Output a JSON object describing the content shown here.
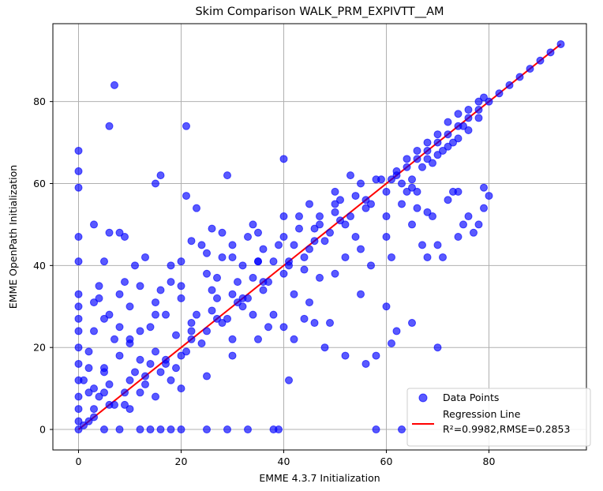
{
  "chart_data": {
    "type": "scatter",
    "title": "Skim Comparison WALK_PRM_EXPIVTT__AM",
    "xlabel": "EMME 4.3.7 Initialization",
    "ylabel": "EMME OpenPath Initialization",
    "xlim": [
      -5,
      99
    ],
    "ylim": [
      -5,
      99
    ],
    "xticks": [
      0,
      20,
      40,
      60,
      80
    ],
    "yticks": [
      0,
      20,
      40,
      60,
      80
    ],
    "xtick_labels": [
      "0",
      "20",
      "40",
      "60",
      "80"
    ],
    "ytick_labels": [
      "0",
      "20",
      "40",
      "60",
      "80"
    ],
    "grid": true,
    "legend_position": "bottom-right",
    "legend": {
      "points_label": "Data Points",
      "line_label": "Regression Line",
      "stats_label": "R²=0.9982,RMSE=0.2853"
    },
    "regression": {
      "slope": 1.0,
      "intercept": 0.0,
      "x_range": [
        0,
        94
      ],
      "r2": 0.9982,
      "rmse": 0.2853
    },
    "colors": {
      "points": "#0000ff",
      "line": "#ff0000",
      "grid": "#b0b0b0"
    },
    "series": [
      {
        "name": "Data Points",
        "points": [
          [
            0,
            0
          ],
          [
            0,
            2
          ],
          [
            0,
            5
          ],
          [
            0,
            8
          ],
          [
            0,
            12
          ],
          [
            0,
            16
          ],
          [
            0,
            20
          ],
          [
            0,
            24
          ],
          [
            0,
            27
          ],
          [
            0,
            30
          ],
          [
            0,
            33
          ],
          [
            0,
            41
          ],
          [
            0,
            47
          ],
          [
            0,
            59
          ],
          [
            0,
            63
          ],
          [
            0,
            68
          ],
          [
            1,
            12
          ],
          [
            2,
            9
          ],
          [
            2,
            15
          ],
          [
            2,
            19
          ],
          [
            3,
            10
          ],
          [
            3,
            24
          ],
          [
            3,
            31
          ],
          [
            3,
            50
          ],
          [
            4,
            32
          ],
          [
            4,
            35
          ],
          [
            5,
            14
          ],
          [
            5,
            27
          ],
          [
            5,
            41
          ],
          [
            6,
            28
          ],
          [
            6,
            48
          ],
          [
            6,
            74
          ],
          [
            7,
            84
          ],
          [
            7,
            22
          ],
          [
            8,
            18
          ],
          [
            8,
            33
          ],
          [
            8,
            48
          ],
          [
            9,
            36
          ],
          [
            9,
            47
          ],
          [
            10,
            30
          ],
          [
            10,
            21
          ],
          [
            11,
            40
          ],
          [
            12,
            17
          ],
          [
            13,
            42
          ],
          [
            14,
            25
          ],
          [
            15,
            31
          ],
          [
            15,
            60
          ],
          [
            16,
            62
          ],
          [
            17,
            28
          ],
          [
            18,
            36
          ],
          [
            19,
            15
          ],
          [
            20,
            32
          ],
          [
            20,
            41
          ],
          [
            21,
            74
          ],
          [
            21,
            57
          ],
          [
            22,
            46
          ],
          [
            23,
            54
          ],
          [
            25,
            43
          ],
          [
            26,
            49
          ],
          [
            27,
            37
          ],
          [
            28,
            48
          ],
          [
            29,
            62
          ],
          [
            30,
            42
          ],
          [
            32,
            32
          ],
          [
            33,
            47
          ],
          [
            34,
            50
          ],
          [
            35,
            41
          ],
          [
            37,
            25
          ],
          [
            38,
            28
          ],
          [
            40,
            66
          ],
          [
            41,
            12
          ],
          [
            42,
            22
          ],
          [
            44,
            39
          ],
          [
            46,
            26
          ],
          [
            48,
            20
          ],
          [
            49,
            26
          ],
          [
            50,
            55
          ],
          [
            52,
            18
          ],
          [
            53,
            62
          ],
          [
            55,
            33
          ],
          [
            56,
            16
          ],
          [
            58,
            18
          ],
          [
            60,
            30
          ],
          [
            61,
            21
          ],
          [
            62,
            24
          ],
          [
            65,
            26
          ],
          [
            66,
            54
          ],
          [
            67,
            45
          ],
          [
            68,
            42
          ],
          [
            69,
            52
          ],
          [
            70,
            45
          ],
          [
            71,
            42
          ],
          [
            72,
            56
          ],
          [
            73,
            58
          ],
          [
            74,
            47
          ],
          [
            75,
            50
          ],
          [
            76,
            52
          ],
          [
            77,
            48
          ],
          [
            78,
            50
          ],
          [
            79,
            54
          ],
          [
            80,
            57
          ],
          [
            66,
            58
          ],
          [
            65,
            50
          ],
          [
            70,
            20
          ],
          [
            68,
            53
          ],
          [
            74,
            58
          ],
          [
            79,
            59
          ],
          [
            5,
            0
          ],
          [
            8,
            0
          ],
          [
            12,
            0
          ],
          [
            14,
            0
          ],
          [
            16,
            0
          ],
          [
            18,
            0
          ],
          [
            20,
            0
          ],
          [
            25,
            0
          ],
          [
            29,
            0
          ],
          [
            33,
            0
          ],
          [
            38,
            0
          ],
          [
            39,
            0
          ],
          [
            58,
            0
          ],
          [
            63,
            0
          ],
          [
            3,
            5
          ],
          [
            5,
            9
          ],
          [
            7,
            6
          ],
          [
            10,
            12
          ],
          [
            12,
            9
          ],
          [
            14,
            16
          ],
          [
            16,
            14
          ],
          [
            18,
            12
          ],
          [
            20,
            18
          ],
          [
            22,
            24
          ],
          [
            24,
            21
          ],
          [
            26,
            29
          ],
          [
            28,
            26
          ],
          [
            30,
            33
          ],
          [
            32,
            30
          ],
          [
            34,
            37
          ],
          [
            36,
            34
          ],
          [
            38,
            41
          ],
          [
            40,
            38
          ],
          [
            42,
            45
          ],
          [
            44,
            42
          ],
          [
            46,
            49
          ],
          [
            48,
            46
          ],
          [
            50,
            53
          ],
          [
            52,
            50
          ],
          [
            54,
            57
          ],
          [
            56,
            54
          ],
          [
            58,
            61
          ],
          [
            60,
            58
          ],
          [
            4,
            8
          ],
          [
            6,
            11
          ],
          [
            9,
            6
          ],
          [
            11,
            14
          ],
          [
            13,
            11
          ],
          [
            15,
            19
          ],
          [
            17,
            16
          ],
          [
            19,
            23
          ],
          [
            21,
            19
          ],
          [
            23,
            28
          ],
          [
            25,
            24
          ],
          [
            27,
            32
          ],
          [
            29,
            27
          ],
          [
            31,
            36
          ],
          [
            33,
            32
          ],
          [
            35,
            41
          ],
          [
            37,
            36
          ],
          [
            39,
            45
          ],
          [
            41,
            40
          ],
          [
            43,
            49
          ],
          [
            45,
            44
          ],
          [
            47,
            52
          ],
          [
            49,
            48
          ],
          [
            51,
            56
          ],
          [
            53,
            52
          ],
          [
            55,
            60
          ],
          [
            57,
            55
          ],
          [
            59,
            61
          ],
          [
            10,
            5
          ],
          [
            15,
            8
          ],
          [
            20,
            10
          ],
          [
            25,
            13
          ],
          [
            30,
            18
          ],
          [
            35,
            22
          ],
          [
            40,
            25
          ],
          [
            45,
            31
          ],
          [
            50,
            38
          ],
          [
            55,
            44
          ],
          [
            60,
            52
          ],
          [
            5,
            15
          ],
          [
            10,
            22
          ],
          [
            15,
            28
          ],
          [
            20,
            35
          ],
          [
            25,
            38
          ],
          [
            30,
            45
          ],
          [
            35,
            48
          ],
          [
            40,
            52
          ],
          [
            45,
            55
          ],
          [
            50,
            58
          ],
          [
            1,
            1
          ],
          [
            2,
            2
          ],
          [
            3,
            3
          ],
          [
            6,
            6
          ],
          [
            9,
            9
          ],
          [
            13,
            13
          ],
          [
            17,
            17
          ],
          [
            22,
            22
          ],
          [
            27,
            27
          ],
          [
            31,
            31
          ],
          [
            36,
            36
          ],
          [
            41,
            41
          ],
          [
            46,
            46
          ],
          [
            51,
            51
          ],
          [
            56,
            56
          ],
          [
            61,
            61
          ],
          [
            62,
            62
          ],
          [
            64,
            64
          ],
          [
            66,
            66
          ],
          [
            68,
            68
          ],
          [
            70,
            70
          ],
          [
            72,
            72
          ],
          [
            74,
            74
          ],
          [
            76,
            76
          ],
          [
            78,
            78
          ],
          [
            80,
            80
          ],
          [
            82,
            82
          ],
          [
            84,
            84
          ],
          [
            86,
            86
          ],
          [
            88,
            88
          ],
          [
            90,
            90
          ],
          [
            92,
            92
          ],
          [
            94,
            94
          ],
          [
            62,
            63
          ],
          [
            64,
            66
          ],
          [
            66,
            68
          ],
          [
            68,
            70
          ],
          [
            70,
            72
          ],
          [
            72,
            75
          ],
          [
            74,
            77
          ],
          [
            76,
            78
          ],
          [
            78,
            80
          ],
          [
            79,
            81
          ],
          [
            68,
            66
          ],
          [
            70,
            67
          ],
          [
            72,
            69
          ],
          [
            74,
            71
          ],
          [
            76,
            73
          ],
          [
            78,
            76
          ],
          [
            63,
            60
          ],
          [
            65,
            61
          ],
          [
            67,
            64
          ],
          [
            69,
            65
          ],
          [
            71,
            68
          ],
          [
            73,
            70
          ],
          [
            75,
            74
          ],
          [
            8,
            25
          ],
          [
            12,
            35
          ],
          [
            18,
            40
          ],
          [
            22,
            26
          ],
          [
            26,
            34
          ],
          [
            30,
            22
          ],
          [
            34,
            28
          ],
          [
            42,
            33
          ],
          [
            44,
            27
          ],
          [
            47,
            37
          ],
          [
            52,
            42
          ],
          [
            54,
            47
          ],
          [
            57,
            40
          ],
          [
            60,
            47
          ],
          [
            61,
            42
          ],
          [
            63,
            55
          ],
          [
            64,
            58
          ],
          [
            65,
            59
          ],
          [
            12,
            24
          ],
          [
            16,
            34
          ],
          [
            24,
            45
          ],
          [
            28,
            42
          ],
          [
            32,
            40
          ],
          [
            36,
            44
          ],
          [
            40,
            47
          ],
          [
            43,
            52
          ],
          [
            47,
            50
          ]
        ]
      }
    ]
  }
}
